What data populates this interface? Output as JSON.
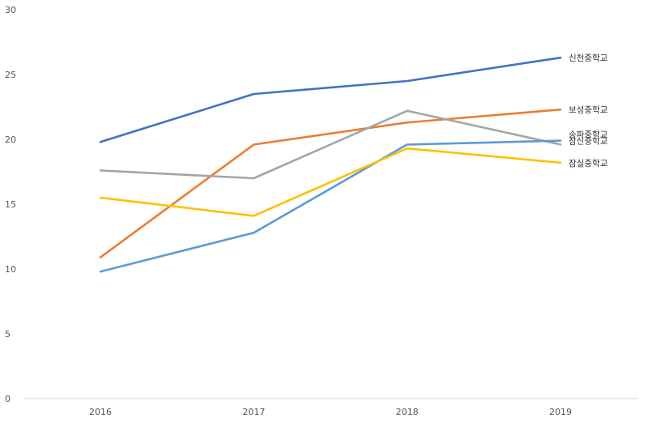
{
  "chart_data": {
    "type": "line",
    "categories": [
      "2016",
      "2017",
      "2018",
      "2019"
    ],
    "ylim": [
      0,
      30
    ],
    "yticks": [
      0,
      5,
      10,
      15,
      20,
      25,
      30
    ],
    "grid": false,
    "legend": "end-of-line labels",
    "series": [
      {
        "name": "신천중학교",
        "color": "#4472C4",
        "values": [
          19.8,
          23.5,
          24.5,
          26.3
        ]
      },
      {
        "name": "보성중학교",
        "color": "#ED7D31",
        "values": [
          10.9,
          19.6,
          21.3,
          22.3
        ]
      },
      {
        "name": "송파중학교",
        "color": "#A5A5A5",
        "values": [
          17.6,
          17.0,
          22.2,
          19.6
        ]
      },
      {
        "name": "잠신중학교",
        "color": "#5B9BD5",
        "values": [
          9.8,
          12.8,
          19.6,
          19.9
        ]
      },
      {
        "name": "잠실중학교",
        "color": "#FFC000",
        "values": [
          15.5,
          14.1,
          19.3,
          18.2
        ]
      }
    ]
  }
}
